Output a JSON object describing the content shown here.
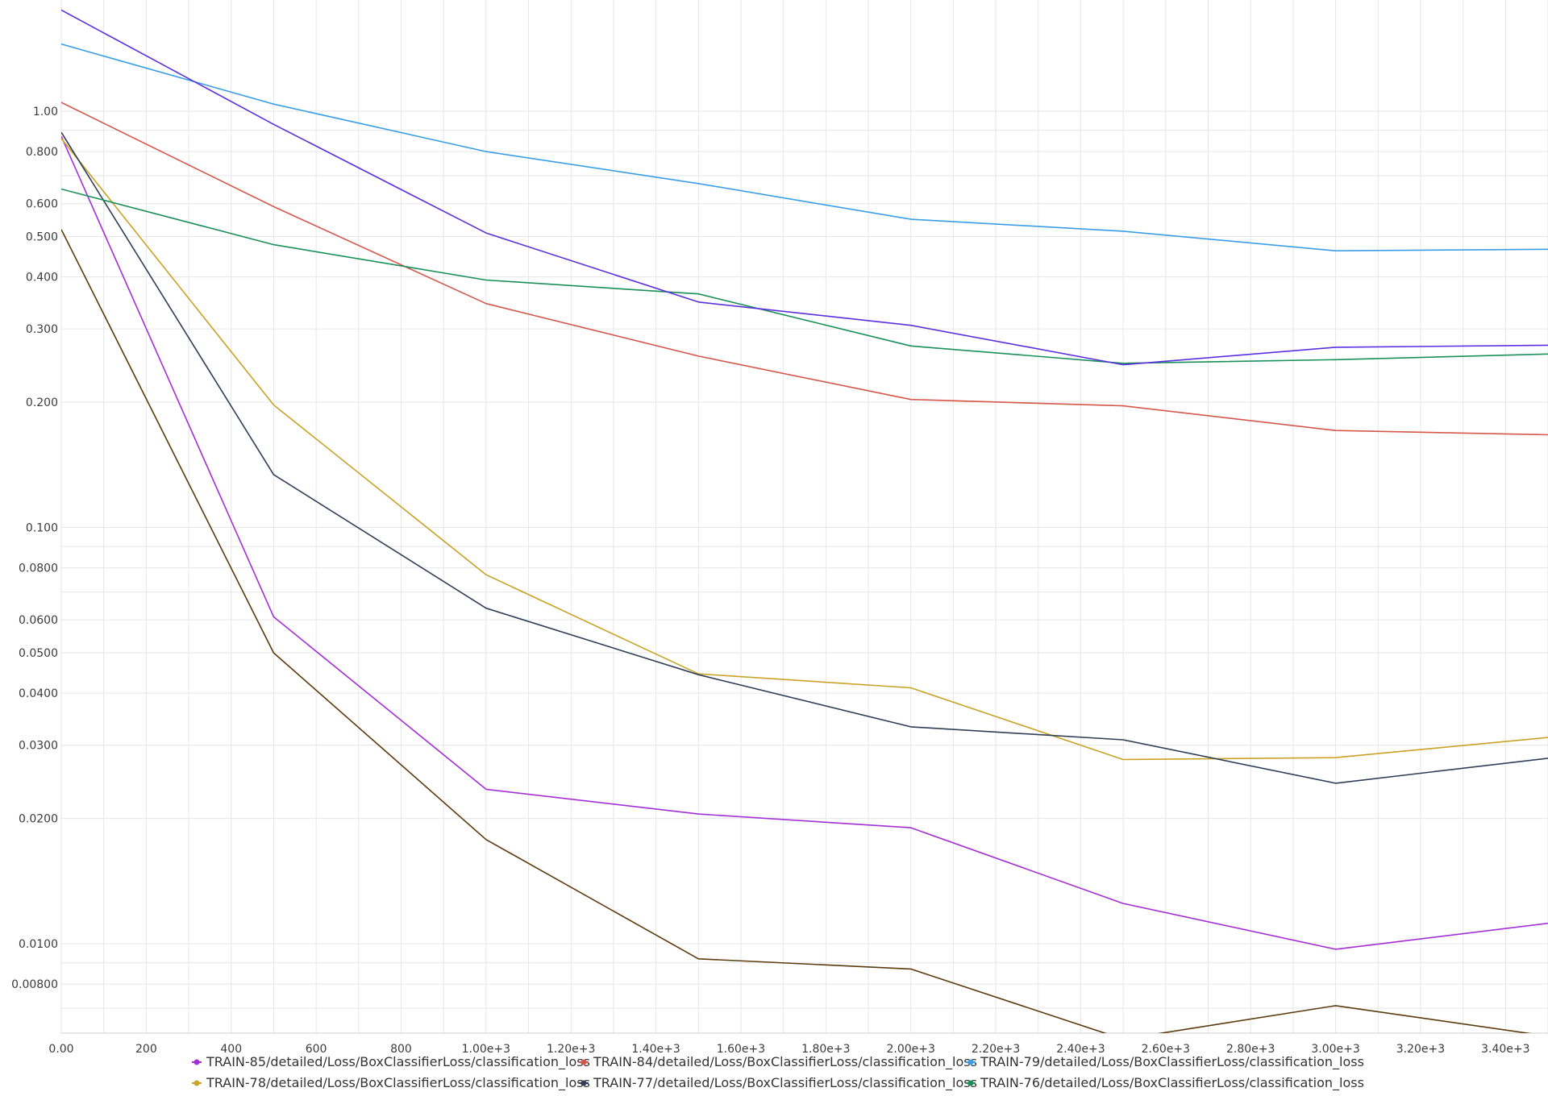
{
  "chart_data": {
    "type": "line",
    "title": "",
    "xlabel": "",
    "ylabel": "",
    "y_scale": "log",
    "grid": true,
    "legend_position": "bottom",
    "xlim": [
      0,
      3500
    ],
    "ylim": [
      0.0061,
      1.85
    ],
    "x_ticks": [
      0,
      200,
      400,
      600,
      800,
      1000,
      1200,
      1400,
      1600,
      1800,
      2000,
      2200,
      2400,
      2600,
      2800,
      3000,
      3200,
      3400
    ],
    "x_tick_labels": [
      "0.00",
      "200",
      "400",
      "600",
      "800",
      "1.00e+3",
      "1.20e+3",
      "1.40e+3",
      "1.60e+3",
      "1.80e+3",
      "2.00e+3",
      "2.20e+3",
      "2.40e+3",
      "2.60e+3",
      "2.80e+3",
      "3.00e+3",
      "3.20e+3",
      "3.40e+3"
    ],
    "y_ticks": [
      1.0,
      0.8,
      0.6,
      0.5,
      0.4,
      0.3,
      0.2,
      0.1,
      0.08,
      0.06,
      0.05,
      0.04,
      0.03,
      0.02,
      0.01,
      0.008
    ],
    "y_tick_labels": [
      "1.00",
      "0.800",
      "0.600",
      "0.500",
      "0.400",
      "0.300",
      "0.200",
      "0.100",
      "0.0800",
      "0.0600",
      "0.0500",
      "0.0400",
      "0.0300",
      "0.0200",
      "0.0100",
      "0.00800"
    ],
    "y_minor_ticks": [
      0.9,
      0.7,
      0.09,
      0.07,
      0.009,
      0.007
    ],
    "x": [
      0,
      500,
      1000,
      1500,
      2000,
      2500,
      3000,
      3500
    ],
    "series": [
      {
        "name": "TRAIN-85/detailed/Loss/BoxClassifierLoss/classification_loss",
        "color": "#a42fd6",
        "values": [
          0.87,
          0.061,
          0.0235,
          0.0205,
          0.019,
          0.0125,
          0.0097,
          0.0112
        ]
      },
      {
        "name": "TRAIN-84/detailed/Loss/BoxClassifierLoss/classification_loss",
        "color": "#d4574a",
        "values": [
          1.05,
          0.59,
          0.345,
          0.258,
          0.203,
          0.196,
          0.171,
          0.167
        ]
      },
      {
        "name": "TRAIN-79/detailed/Loss/BoxClassifierLoss/classification_loss",
        "color": "#3a9ee6",
        "values": [
          1.45,
          1.04,
          0.8,
          0.67,
          0.55,
          0.515,
          0.462,
          0.466
        ]
      },
      {
        "name": "TRAIN-78/detailed/Loss/BoxClassifierLoss/classification_loss",
        "color": "#c9a227",
        "values": [
          0.86,
          0.197,
          0.077,
          0.0445,
          0.0412,
          0.0277,
          0.028,
          0.0313
        ]
      },
      {
        "name": "TRAIN-77/detailed/Loss/BoxClassifierLoss/classification_loss",
        "color": "#2f3e57",
        "values": [
          0.89,
          0.134,
          0.064,
          0.0443,
          0.0332,
          0.0309,
          0.0243,
          0.0279
        ]
      },
      {
        "name": "TRAIN-76/detailed/Loss/BoxClassifierLoss/classification_loss",
        "color": "#1a8f5a",
        "values": [
          0.65,
          0.478,
          0.393,
          0.364,
          0.273,
          0.248,
          0.253,
          0.261
        ]
      },
      {
        "name": "",
        "color": "#5c3a0c",
        "values": [
          0.52,
          0.05,
          0.0178,
          0.0092,
          0.0087,
          0.0059,
          0.0071,
          0.006
        ]
      },
      {
        "name": "",
        "color": "#5b2fe0",
        "values": [
          1.75,
          0.93,
          0.51,
          0.348,
          0.306,
          0.246,
          0.271,
          0.274
        ]
      }
    ]
  }
}
